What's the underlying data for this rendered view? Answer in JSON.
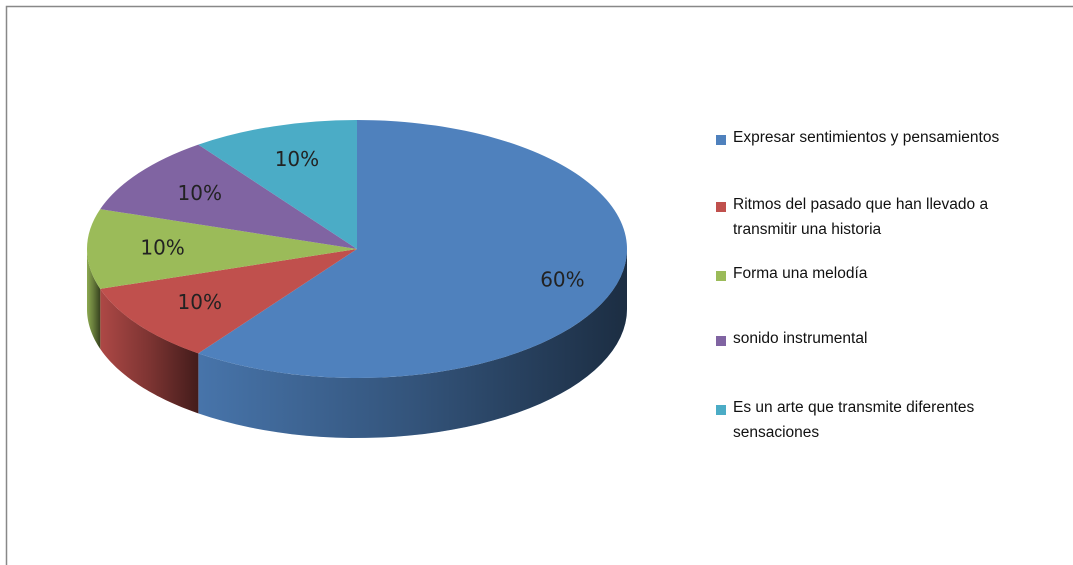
{
  "chart_data": {
    "type": "pie",
    "categories": [
      "Expresar sentimientos y pensamientos",
      "Ritmos del pasado que han llevado a transmitir una historia",
      "Forma una melodía",
      "sonido instrumental",
      "Es un arte que transmite diferentes sensaciones"
    ],
    "values": [
      60,
      10,
      10,
      10,
      10
    ],
    "value_labels": [
      "60%",
      "10%",
      "10%",
      "10%",
      "10%"
    ],
    "colors": [
      "#4f81bd",
      "#c0504d",
      "#9bbb59",
      "#8064a2",
      "#4bacc6"
    ],
    "legend": "right"
  }
}
